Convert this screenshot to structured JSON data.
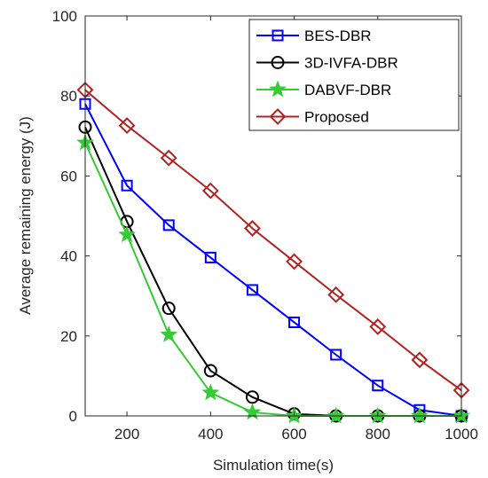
{
  "chart_data": {
    "type": "line",
    "xlabel": "Simulation time(s)",
    "ylabel": "Average remaining energy (J)",
    "xlim": [
      100,
      1000
    ],
    "ylim": [
      0,
      100
    ],
    "xticks": [
      200,
      400,
      600,
      800,
      1000
    ],
    "yticks": [
      0,
      20,
      40,
      60,
      80,
      100
    ],
    "xtick_labels": [
      "200",
      "400",
      "600",
      "800",
      "1000"
    ],
    "ytick_labels": [
      "0",
      "20",
      "40",
      "60",
      "80",
      "100"
    ],
    "grid": false,
    "legend_position": "top-right",
    "x": [
      100,
      200,
      300,
      400,
      500,
      600,
      700,
      800,
      900,
      1000
    ],
    "series": [
      {
        "name": "BES-DBR",
        "color": "#0000ff",
        "marker": "square",
        "values": [
          78,
          57.6,
          47.7,
          39.6,
          31.5,
          23.4,
          15.3,
          7.6,
          1.5,
          0
        ]
      },
      {
        "name": "3D-IVFA-DBR",
        "color": "#000000",
        "marker": "circle",
        "values": [
          72.2,
          48.6,
          26.9,
          11.3,
          4.7,
          0.5,
          0,
          0,
          0,
          0
        ]
      },
      {
        "name": "DABVF-DBR",
        "color": "#33cc33",
        "marker": "star",
        "values": [
          68.3,
          45.3,
          20.3,
          5.8,
          0.9,
          0,
          0,
          0,
          0,
          0
        ]
      },
      {
        "name": "Proposed",
        "color": "#b22222",
        "marker": "diamond",
        "values": [
          81.5,
          72.6,
          64.5,
          56.3,
          46.9,
          38.6,
          30.3,
          22.3,
          14,
          6.4
        ]
      }
    ]
  }
}
